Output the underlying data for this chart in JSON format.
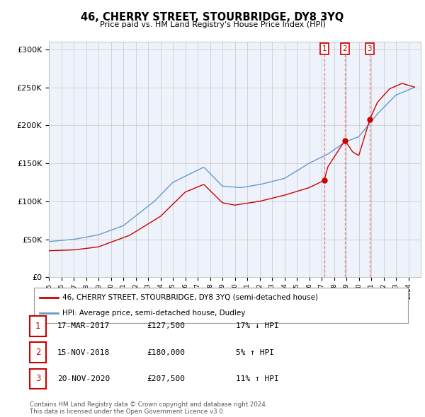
{
  "title": "46, CHERRY STREET, STOURBRIDGE, DY8 3YQ",
  "subtitle": "Price paid vs. HM Land Registry's House Price Index (HPI)",
  "property_label": "46, CHERRY STREET, STOURBRIDGE, DY8 3YQ (semi-detached house)",
  "hpi_label": "HPI: Average price, semi-detached house, Dudley",
  "property_color": "#cc0000",
  "hpi_color": "#6699cc",
  "vline_color": "#dd6666",
  "transactions": [
    {
      "num": 1,
      "date_dec": 2017.21,
      "label": "17-MAR-2017",
      "price": 127500,
      "pct": "17% ↓ HPI"
    },
    {
      "num": 2,
      "date_dec": 2018.88,
      "label": "15-NOV-2018",
      "price": 180000,
      "pct": "5% ↑ HPI"
    },
    {
      "num": 3,
      "date_dec": 2020.88,
      "label": "20-NOV-2020",
      "price": 207500,
      "pct": "11% ↑ HPI"
    }
  ],
  "footer": "Contains HM Land Registry data © Crown copyright and database right 2024.\nThis data is licensed under the Open Government Licence v3.0.",
  "ylim": [
    0,
    310000
  ],
  "yticks": [
    0,
    50000,
    100000,
    150000,
    200000,
    250000,
    300000
  ],
  "xlim": [
    1995,
    2025
  ],
  "background_color": "#ffffff",
  "hpi_waypoints_t": [
    1995.0,
    1997.0,
    1999.0,
    2001.0,
    2003.5,
    2005.0,
    2007.5,
    2009.0,
    2010.5,
    2012.0,
    2014.0,
    2016.0,
    2017.5,
    2018.9,
    2020.0,
    2021.5,
    2023.0,
    2024.5
  ],
  "hpi_waypoints_v": [
    47000,
    50000,
    56000,
    68000,
    100000,
    125000,
    145000,
    120000,
    118000,
    122000,
    130000,
    150000,
    162000,
    178000,
    185000,
    215000,
    240000,
    250000
  ],
  "prop_waypoints_t": [
    1995.0,
    1997.0,
    1999.0,
    2001.5,
    2004.0,
    2006.0,
    2007.5,
    2009.0,
    2010.0,
    2012.0,
    2014.0,
    2016.0,
    2017.21,
    2017.5,
    2018.88,
    2019.5,
    2020.0,
    2020.88,
    2021.5,
    2022.5,
    2023.5,
    2024.5
  ],
  "prop_waypoints_v": [
    35000,
    36000,
    40000,
    55000,
    80000,
    112000,
    122000,
    98000,
    95000,
    100000,
    108000,
    118000,
    127500,
    145000,
    180000,
    165000,
    160000,
    207500,
    230000,
    248000,
    255000,
    250000
  ]
}
